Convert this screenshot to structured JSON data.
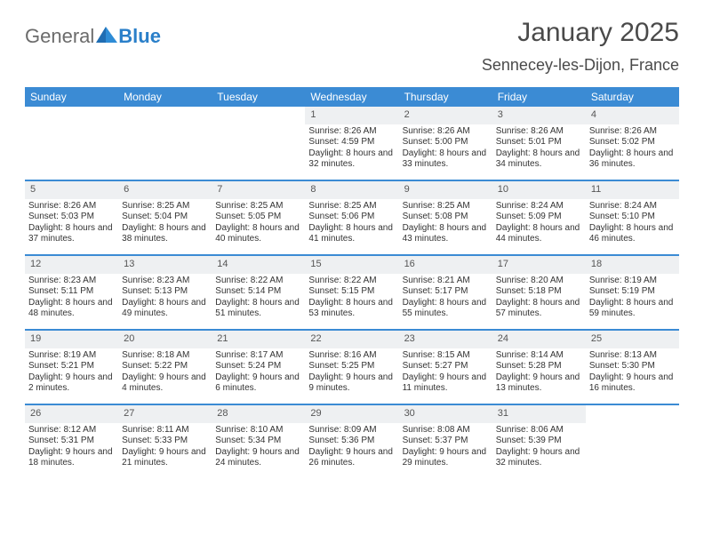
{
  "brand": {
    "word1": "General",
    "word2": "Blue",
    "color1": "#6b6b6b",
    "color2": "#2a7fc9"
  },
  "title": "January 2025",
  "location": "Sennecey-les-Dijon, France",
  "colors": {
    "header_bg": "#3b8bd4",
    "header_text": "#ffffff",
    "daynum_bg": "#eef0f2",
    "body_text": "#333333",
    "page_bg": "#ffffff",
    "week_divider": "#3b8bd4"
  },
  "fonts": {
    "title_size": 30,
    "location_size": 18,
    "header_size": 12,
    "daynum_size": 11,
    "body_size": 10
  },
  "day_headers": [
    "Sunday",
    "Monday",
    "Tuesday",
    "Wednesday",
    "Thursday",
    "Friday",
    "Saturday"
  ],
  "weeks": [
    [
      {
        "n": "",
        "sunrise": "",
        "sunset": "",
        "daylight": ""
      },
      {
        "n": "",
        "sunrise": "",
        "sunset": "",
        "daylight": ""
      },
      {
        "n": "",
        "sunrise": "",
        "sunset": "",
        "daylight": ""
      },
      {
        "n": "1",
        "sunrise": "Sunrise: 8:26 AM",
        "sunset": "Sunset: 4:59 PM",
        "daylight": "Daylight: 8 hours and 32 minutes."
      },
      {
        "n": "2",
        "sunrise": "Sunrise: 8:26 AM",
        "sunset": "Sunset: 5:00 PM",
        "daylight": "Daylight: 8 hours and 33 minutes."
      },
      {
        "n": "3",
        "sunrise": "Sunrise: 8:26 AM",
        "sunset": "Sunset: 5:01 PM",
        "daylight": "Daylight: 8 hours and 34 minutes."
      },
      {
        "n": "4",
        "sunrise": "Sunrise: 8:26 AM",
        "sunset": "Sunset: 5:02 PM",
        "daylight": "Daylight: 8 hours and 36 minutes."
      }
    ],
    [
      {
        "n": "5",
        "sunrise": "Sunrise: 8:26 AM",
        "sunset": "Sunset: 5:03 PM",
        "daylight": "Daylight: 8 hours and 37 minutes."
      },
      {
        "n": "6",
        "sunrise": "Sunrise: 8:25 AM",
        "sunset": "Sunset: 5:04 PM",
        "daylight": "Daylight: 8 hours and 38 minutes."
      },
      {
        "n": "7",
        "sunrise": "Sunrise: 8:25 AM",
        "sunset": "Sunset: 5:05 PM",
        "daylight": "Daylight: 8 hours and 40 minutes."
      },
      {
        "n": "8",
        "sunrise": "Sunrise: 8:25 AM",
        "sunset": "Sunset: 5:06 PM",
        "daylight": "Daylight: 8 hours and 41 minutes."
      },
      {
        "n": "9",
        "sunrise": "Sunrise: 8:25 AM",
        "sunset": "Sunset: 5:08 PM",
        "daylight": "Daylight: 8 hours and 43 minutes."
      },
      {
        "n": "10",
        "sunrise": "Sunrise: 8:24 AM",
        "sunset": "Sunset: 5:09 PM",
        "daylight": "Daylight: 8 hours and 44 minutes."
      },
      {
        "n": "11",
        "sunrise": "Sunrise: 8:24 AM",
        "sunset": "Sunset: 5:10 PM",
        "daylight": "Daylight: 8 hours and 46 minutes."
      }
    ],
    [
      {
        "n": "12",
        "sunrise": "Sunrise: 8:23 AM",
        "sunset": "Sunset: 5:11 PM",
        "daylight": "Daylight: 8 hours and 48 minutes."
      },
      {
        "n": "13",
        "sunrise": "Sunrise: 8:23 AM",
        "sunset": "Sunset: 5:13 PM",
        "daylight": "Daylight: 8 hours and 49 minutes."
      },
      {
        "n": "14",
        "sunrise": "Sunrise: 8:22 AM",
        "sunset": "Sunset: 5:14 PM",
        "daylight": "Daylight: 8 hours and 51 minutes."
      },
      {
        "n": "15",
        "sunrise": "Sunrise: 8:22 AM",
        "sunset": "Sunset: 5:15 PM",
        "daylight": "Daylight: 8 hours and 53 minutes."
      },
      {
        "n": "16",
        "sunrise": "Sunrise: 8:21 AM",
        "sunset": "Sunset: 5:17 PM",
        "daylight": "Daylight: 8 hours and 55 minutes."
      },
      {
        "n": "17",
        "sunrise": "Sunrise: 8:20 AM",
        "sunset": "Sunset: 5:18 PM",
        "daylight": "Daylight: 8 hours and 57 minutes."
      },
      {
        "n": "18",
        "sunrise": "Sunrise: 8:19 AM",
        "sunset": "Sunset: 5:19 PM",
        "daylight": "Daylight: 8 hours and 59 minutes."
      }
    ],
    [
      {
        "n": "19",
        "sunrise": "Sunrise: 8:19 AM",
        "sunset": "Sunset: 5:21 PM",
        "daylight": "Daylight: 9 hours and 2 minutes."
      },
      {
        "n": "20",
        "sunrise": "Sunrise: 8:18 AM",
        "sunset": "Sunset: 5:22 PM",
        "daylight": "Daylight: 9 hours and 4 minutes."
      },
      {
        "n": "21",
        "sunrise": "Sunrise: 8:17 AM",
        "sunset": "Sunset: 5:24 PM",
        "daylight": "Daylight: 9 hours and 6 minutes."
      },
      {
        "n": "22",
        "sunrise": "Sunrise: 8:16 AM",
        "sunset": "Sunset: 5:25 PM",
        "daylight": "Daylight: 9 hours and 9 minutes."
      },
      {
        "n": "23",
        "sunrise": "Sunrise: 8:15 AM",
        "sunset": "Sunset: 5:27 PM",
        "daylight": "Daylight: 9 hours and 11 minutes."
      },
      {
        "n": "24",
        "sunrise": "Sunrise: 8:14 AM",
        "sunset": "Sunset: 5:28 PM",
        "daylight": "Daylight: 9 hours and 13 minutes."
      },
      {
        "n": "25",
        "sunrise": "Sunrise: 8:13 AM",
        "sunset": "Sunset: 5:30 PM",
        "daylight": "Daylight: 9 hours and 16 minutes."
      }
    ],
    [
      {
        "n": "26",
        "sunrise": "Sunrise: 8:12 AM",
        "sunset": "Sunset: 5:31 PM",
        "daylight": "Daylight: 9 hours and 18 minutes."
      },
      {
        "n": "27",
        "sunrise": "Sunrise: 8:11 AM",
        "sunset": "Sunset: 5:33 PM",
        "daylight": "Daylight: 9 hours and 21 minutes."
      },
      {
        "n": "28",
        "sunrise": "Sunrise: 8:10 AM",
        "sunset": "Sunset: 5:34 PM",
        "daylight": "Daylight: 9 hours and 24 minutes."
      },
      {
        "n": "29",
        "sunrise": "Sunrise: 8:09 AM",
        "sunset": "Sunset: 5:36 PM",
        "daylight": "Daylight: 9 hours and 26 minutes."
      },
      {
        "n": "30",
        "sunrise": "Sunrise: 8:08 AM",
        "sunset": "Sunset: 5:37 PM",
        "daylight": "Daylight: 9 hours and 29 minutes."
      },
      {
        "n": "31",
        "sunrise": "Sunrise: 8:06 AM",
        "sunset": "Sunset: 5:39 PM",
        "daylight": "Daylight: 9 hours and 32 minutes."
      },
      {
        "n": "",
        "sunrise": "",
        "sunset": "",
        "daylight": ""
      }
    ]
  ]
}
